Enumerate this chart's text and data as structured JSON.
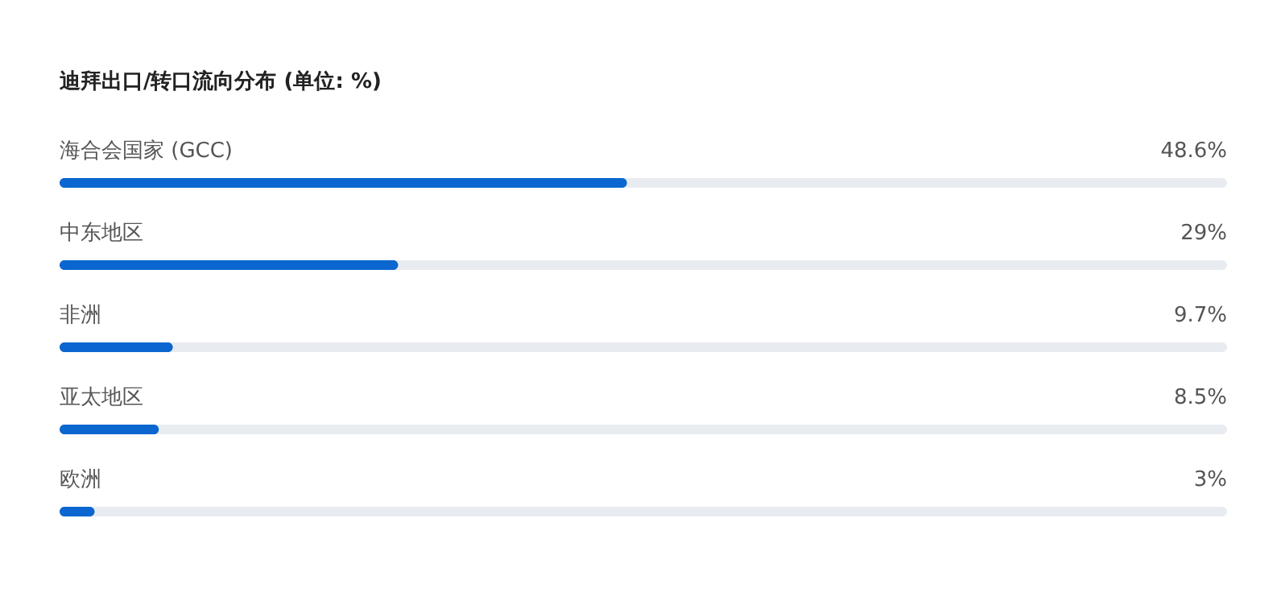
{
  "chart_data": {
    "type": "bar",
    "orientation": "horizontal",
    "title": "迪拜出口/转口流向分布 (单位: %)",
    "categories": [
      "海合会国家 (GCC)",
      "中东地区",
      "非洲",
      "亚太地区",
      "欧洲"
    ],
    "values": [
      48.6,
      29,
      9.7,
      8.5,
      3
    ],
    "value_labels": [
      "48.6%",
      "29%",
      "9.7%",
      "8.5%",
      "3%"
    ],
    "color": "#0b66d0",
    "xlim": [
      0,
      100
    ],
    "tick_labels": false
  }
}
